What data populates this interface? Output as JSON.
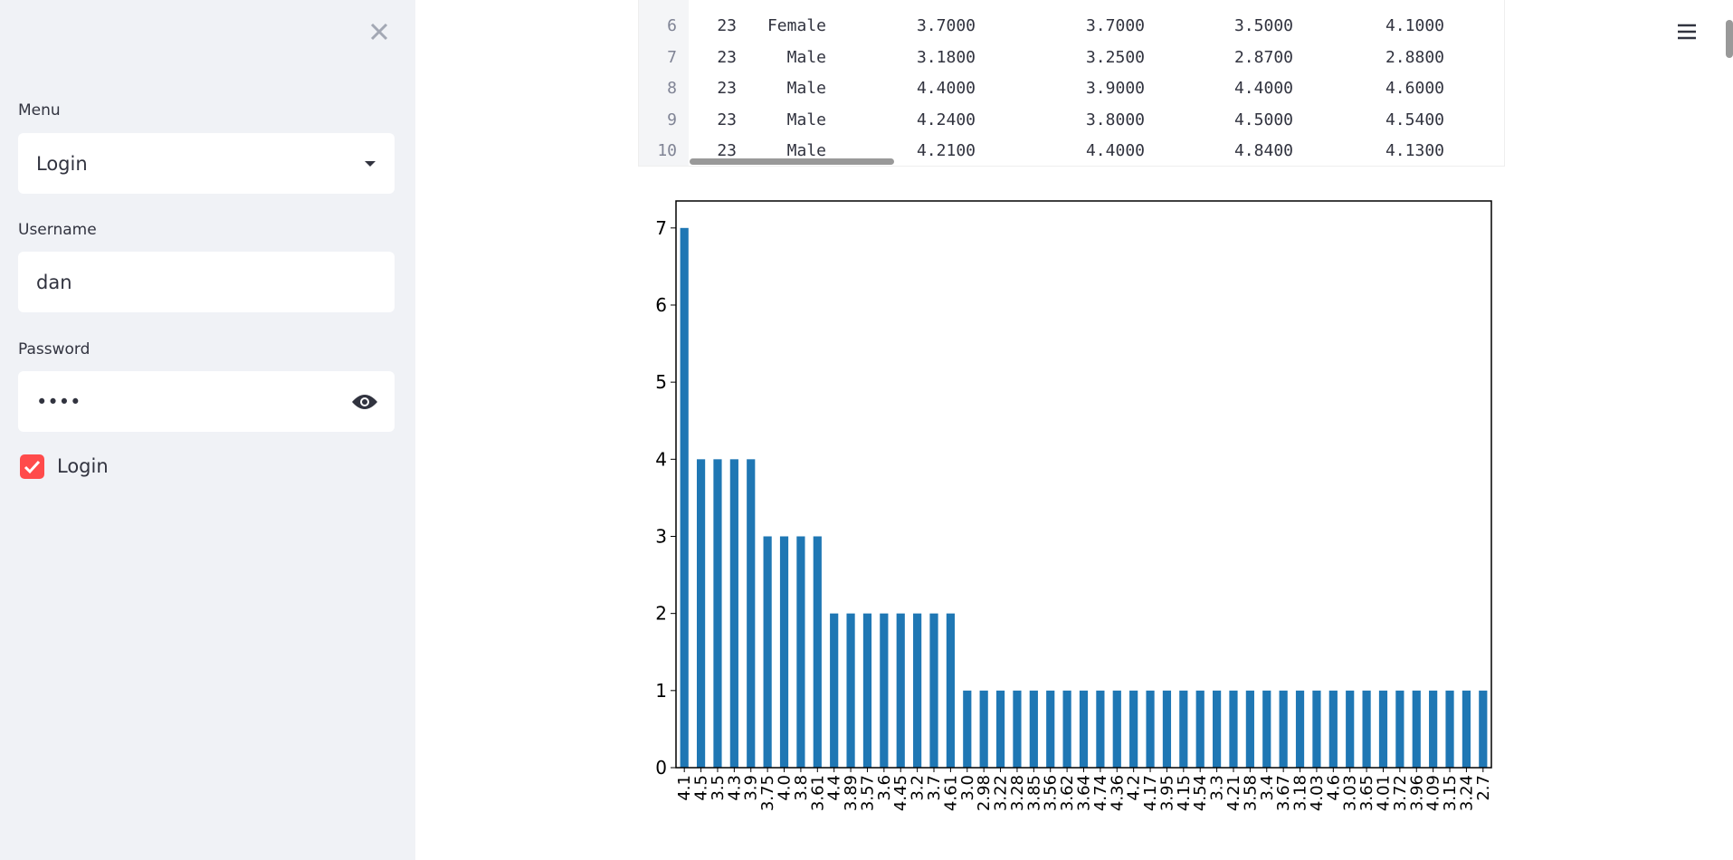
{
  "sidebar": {
    "menu_label": "Menu",
    "menu_value": "Login",
    "username_label": "Username",
    "username_value": "dan",
    "password_label": "Password",
    "password_value": "••••",
    "checkbox_label": "Login"
  },
  "table": {
    "rows": [
      [
        "6",
        "23",
        "Female",
        "3.7000",
        "3.7000",
        "3.5000",
        "4.1000"
      ],
      [
        "7",
        "23",
        "Male",
        "3.1800",
        "3.2500",
        "2.8700",
        "2.8800"
      ],
      [
        "8",
        "23",
        "Male",
        "4.4000",
        "3.9000",
        "4.4000",
        "4.6000"
      ],
      [
        "9",
        "23",
        "Male",
        "4.2400",
        "3.8000",
        "4.5000",
        "4.5400"
      ],
      [
        "10",
        "23",
        "Male",
        "4.2100",
        "4.4000",
        "4.8400",
        "4.1300"
      ]
    ]
  },
  "chart_data": {
    "type": "bar",
    "color": "#1f77b4",
    "categories": [
      "4.1",
      "4.5",
      "3.5",
      "4.3",
      "3.9",
      "3.75",
      "4.0",
      "3.8",
      "3.61",
      "4.4",
      "3.89",
      "3.57",
      "3.6",
      "4.45",
      "3.2",
      "3.7",
      "4.61",
      "3.0",
      "2.98",
      "3.22",
      "3.28",
      "3.85",
      "3.56",
      "3.62",
      "3.64",
      "4.74",
      "4.36",
      "4.2",
      "4.17",
      "3.95",
      "4.15",
      "4.54",
      "3.3",
      "4.21",
      "3.58",
      "3.4",
      "3.67",
      "3.18",
      "4.03",
      "4.6",
      "3.03",
      "3.65",
      "4.01",
      "3.72",
      "3.96",
      "4.09",
      "3.15",
      "3.24",
      "2.7"
    ],
    "values": [
      7,
      4,
      4,
      4,
      4,
      3,
      3,
      3,
      3,
      2,
      2,
      2,
      2,
      2,
      2,
      2,
      2,
      1,
      1,
      1,
      1,
      1,
      1,
      1,
      1,
      1,
      1,
      1,
      1,
      1,
      1,
      1,
      1,
      1,
      1,
      1,
      1,
      1,
      1,
      1,
      1,
      1,
      1,
      1,
      1,
      1,
      1,
      1,
      1
    ],
    "ylim": [
      0,
      7.35
    ],
    "yticks": [
      0,
      1,
      2,
      3,
      4,
      5,
      6,
      7
    ]
  }
}
